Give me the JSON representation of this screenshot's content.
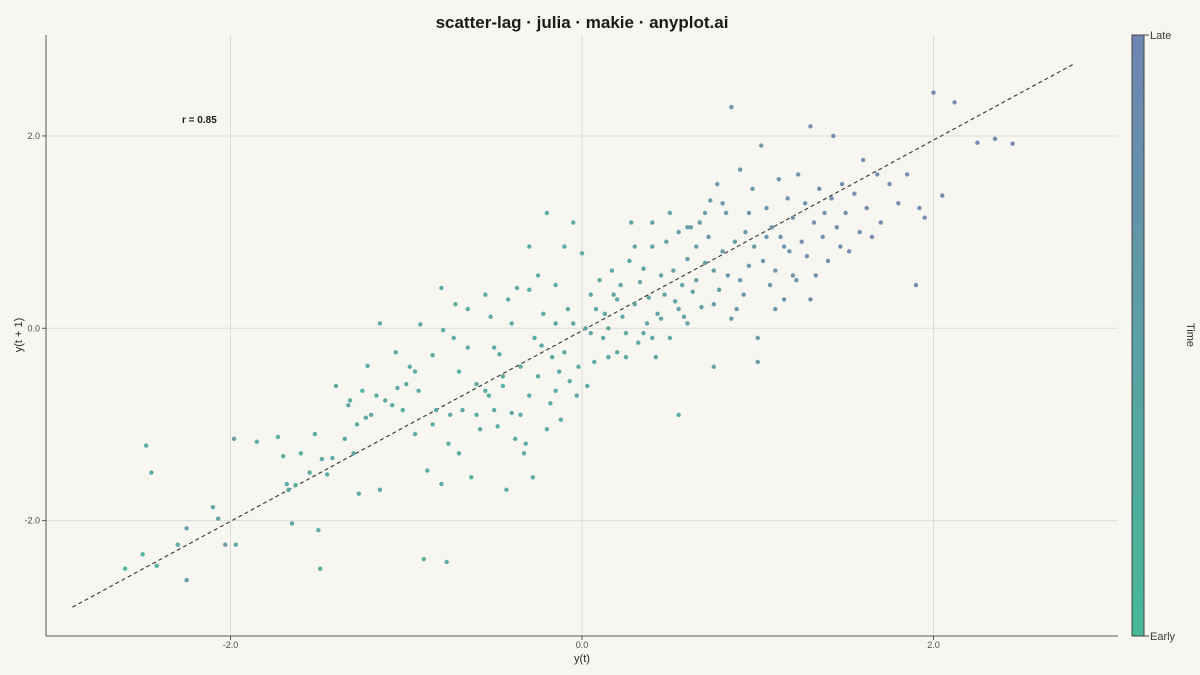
{
  "chart_data": {
    "type": "scatter",
    "title": "scatter-lag · julia · makie · anyplot.ai",
    "xlabel": "y(t)",
    "ylabel": "y(t + 1)",
    "xlim": [
      -3.05,
      3.05
    ],
    "ylim": [
      -3.2,
      3.05
    ],
    "xticks": [
      -2.0,
      0.0,
      2.0
    ],
    "yticks": [
      -2.0,
      0.0,
      2.0
    ],
    "xtick_labels": [
      "-2.0",
      "0.0",
      "2.0"
    ],
    "ytick_labels": [
      "-2.0",
      "0.0",
      "2.0"
    ],
    "grid": true,
    "annotation": "r = 0.85",
    "reference_line": {
      "style": "dashed",
      "from": [
        -2.9,
        -2.9
      ],
      "to": [
        2.8,
        2.75
      ]
    },
    "colorbar": {
      "label": "Time",
      "low_label": "Early",
      "high_label": "Late"
    },
    "colors": {
      "early": "#45b997",
      "late": "#6f85b2",
      "reference_line": "#333333",
      "grid": "#dcdcdc"
    },
    "points": [
      [
        -2.6,
        -2.5,
        0.1
      ],
      [
        -2.5,
        -2.35,
        0.15
      ],
      [
        -2.48,
        -1.22,
        0.4
      ],
      [
        -2.45,
        -1.5,
        0.35
      ],
      [
        -2.42,
        -2.47,
        0.2
      ],
      [
        -2.3,
        -2.25,
        0.3
      ],
      [
        -2.25,
        -2.08,
        0.5
      ],
      [
        -2.25,
        -2.62,
        0.6
      ],
      [
        -2.1,
        -1.86,
        0.45
      ],
      [
        -2.07,
        -1.98,
        0.55
      ],
      [
        -2.03,
        -2.25,
        0.65
      ],
      [
        -1.98,
        -1.15,
        0.7
      ],
      [
        -1.85,
        -1.18,
        0.35
      ],
      [
        -1.73,
        -1.13,
        0.25
      ],
      [
        -1.7,
        -1.33,
        0.2
      ],
      [
        -1.68,
        -1.62,
        0.3
      ],
      [
        -1.67,
        -1.68,
        0.35
      ],
      [
        -1.65,
        -2.03,
        0.5
      ],
      [
        -1.63,
        -1.63,
        0.15
      ],
      [
        -1.6,
        -1.3,
        0.2
      ],
      [
        -1.52,
        -1.1,
        0.3
      ],
      [
        -1.5,
        -2.1,
        0.25
      ],
      [
        -1.49,
        -2.5,
        0.3
      ],
      [
        -1.48,
        -1.36,
        0.35
      ],
      [
        -1.45,
        -1.52,
        0.4
      ],
      [
        -1.42,
        -1.35,
        0.4
      ],
      [
        -1.35,
        -1.15,
        0.35
      ],
      [
        -1.33,
        -0.8,
        0.45
      ],
      [
        -1.32,
        -0.75,
        0.3
      ],
      [
        -1.3,
        -1.3,
        0.4
      ],
      [
        -1.28,
        -1.0,
        0.3
      ],
      [
        -1.27,
        -1.72,
        0.3
      ],
      [
        -1.25,
        -0.65,
        0.2
      ],
      [
        -1.23,
        -0.93,
        0.4
      ],
      [
        -1.22,
        -0.39,
        0.35
      ],
      [
        -1.2,
        -0.9,
        0.4
      ],
      [
        -1.17,
        -0.7,
        0.25
      ],
      [
        -1.15,
        -1.68,
        0.3
      ],
      [
        -1.12,
        -0.75,
        0.45
      ],
      [
        -1.08,
        -0.8,
        0.35
      ],
      [
        -1.06,
        -0.25,
        0.3
      ],
      [
        -1.05,
        -0.62,
        0.4
      ],
      [
        -1.02,
        -0.85,
        0.2
      ],
      [
        -1.0,
        -0.58,
        0.3
      ],
      [
        -0.98,
        -0.4,
        0.3
      ],
      [
        -0.95,
        -0.45,
        0.25
      ],
      [
        -0.93,
        -0.65,
        0.35
      ],
      [
        -0.92,
        0.04,
        0.4
      ],
      [
        -0.88,
        -1.48,
        0.3
      ],
      [
        -0.85,
        -0.28,
        0.2
      ],
      [
        -0.83,
        -0.85,
        0.3
      ],
      [
        -0.8,
        -1.62,
        0.3
      ],
      [
        -0.79,
        -0.02,
        0.35
      ],
      [
        -0.77,
        -2.43,
        0.4
      ],
      [
        -0.76,
        -1.2,
        0.3
      ],
      [
        -0.75,
        -0.9,
        0.4
      ],
      [
        -0.73,
        -0.1,
        0.3
      ],
      [
        -0.7,
        -0.45,
        0.2
      ],
      [
        -0.68,
        -0.85,
        0.3
      ],
      [
        -0.65,
        -0.2,
        0.3
      ],
      [
        -0.63,
        -1.55,
        0.2
      ],
      [
        -0.6,
        -0.58,
        0.3
      ],
      [
        -0.58,
        -1.05,
        0.4
      ],
      [
        -0.55,
        -0.65,
        0.3
      ],
      [
        -0.53,
        -0.7,
        0.2
      ],
      [
        -0.52,
        0.12,
        0.3
      ],
      [
        -0.5,
        -0.85,
        0.35
      ],
      [
        -0.48,
        -1.02,
        0.25
      ],
      [
        -0.47,
        -0.27,
        0.3
      ],
      [
        -0.45,
        -0.6,
        0.2
      ],
      [
        -0.43,
        -1.68,
        0.3
      ],
      [
        -0.42,
        0.3,
        0.35
      ],
      [
        -0.4,
        -0.88,
        0.4
      ],
      [
        -0.38,
        -1.15,
        0.3
      ],
      [
        -0.37,
        0.42,
        0.3
      ],
      [
        -0.35,
        -0.9,
        0.35
      ],
      [
        -0.33,
        -1.3,
        0.3
      ],
      [
        -0.32,
        -1.2,
        0.3
      ],
      [
        -0.3,
        -0.7,
        0.4
      ],
      [
        -0.28,
        -1.55,
        0.3
      ],
      [
        -0.27,
        -0.1,
        0.2
      ],
      [
        -0.25,
        -0.5,
        0.3
      ],
      [
        -0.23,
        -0.18,
        0.3
      ],
      [
        -0.22,
        0.15,
        0.35
      ],
      [
        -0.2,
        -1.05,
        0.4
      ],
      [
        -0.18,
        -0.78,
        0.3
      ],
      [
        -0.17,
        -0.3,
        0.3
      ],
      [
        -0.15,
        0.05,
        0.35
      ],
      [
        -0.13,
        -0.45,
        0.35
      ],
      [
        -0.12,
        -0.95,
        0.3
      ],
      [
        -0.1,
        -0.25,
        0.3
      ],
      [
        -0.08,
        0.2,
        0.3
      ],
      [
        -0.07,
        -0.55,
        0.35
      ],
      [
        -0.05,
        0.05,
        0.35
      ],
      [
        -0.03,
        -0.7,
        0.4
      ],
      [
        -0.02,
        -0.4,
        0.3
      ],
      [
        0.0,
        0.78,
        0.3
      ],
      [
        0.02,
        0.0,
        0.4
      ],
      [
        0.03,
        -0.6,
        0.3
      ],
      [
        0.05,
        0.35,
        0.45
      ],
      [
        0.07,
        -0.35,
        0.35
      ],
      [
        0.08,
        0.2,
        0.4
      ],
      [
        0.1,
        0.5,
        0.4
      ],
      [
        0.12,
        -0.1,
        0.4
      ],
      [
        0.13,
        0.15,
        0.35
      ],
      [
        0.15,
        -0.3,
        0.4
      ],
      [
        0.17,
        0.6,
        0.4
      ],
      [
        0.18,
        0.35,
        0.45
      ],
      [
        0.2,
        -0.25,
        0.35
      ],
      [
        0.22,
        0.45,
        0.45
      ],
      [
        0.23,
        0.12,
        0.45
      ],
      [
        0.25,
        -0.05,
        0.4
      ],
      [
        0.27,
        0.7,
        0.45
      ],
      [
        0.28,
        1.1,
        0.5
      ],
      [
        0.3,
        0.25,
        0.45
      ],
      [
        0.32,
        -0.15,
        0.4
      ],
      [
        0.33,
        0.48,
        0.4
      ],
      [
        0.35,
        0.62,
        0.5
      ],
      [
        0.37,
        0.05,
        0.5
      ],
      [
        0.38,
        0.32,
        0.45
      ],
      [
        0.4,
        0.85,
        0.5
      ],
      [
        0.42,
        -0.3,
        0.45
      ],
      [
        0.43,
        0.15,
        0.5
      ],
      [
        0.45,
        0.55,
        0.5
      ],
      [
        0.47,
        0.35,
        0.45
      ],
      [
        0.48,
        0.9,
        0.5
      ],
      [
        0.5,
        -0.1,
        0.45
      ],
      [
        0.52,
        0.6,
        0.5
      ],
      [
        0.53,
        0.28,
        0.5
      ],
      [
        0.55,
        1.0,
        0.5
      ],
      [
        0.57,
        0.45,
        0.5
      ],
      [
        0.58,
        0.12,
        0.55
      ],
      [
        0.6,
        0.72,
        0.6
      ],
      [
        0.62,
        1.05,
        0.55
      ],
      [
        0.63,
        0.38,
        0.55
      ],
      [
        0.65,
        0.5,
        0.6
      ],
      [
        0.67,
        1.1,
        0.6
      ],
      [
        0.68,
        0.22,
        0.55
      ],
      [
        0.7,
        0.68,
        0.6
      ],
      [
        0.72,
        0.95,
        0.65
      ],
      [
        0.73,
        1.33,
        0.6
      ],
      [
        0.75,
        0.6,
        0.65
      ],
      [
        0.77,
        1.5,
        0.65
      ],
      [
        0.78,
        0.4,
        0.6
      ],
      [
        0.8,
        0.8,
        0.6
      ],
      [
        0.82,
        1.2,
        0.7
      ],
      [
        0.83,
        0.55,
        0.6
      ],
      [
        0.85,
        2.3,
        0.75
      ],
      [
        0.87,
        0.9,
        0.65
      ],
      [
        0.88,
        0.2,
        0.65
      ],
      [
        0.9,
        1.65,
        0.7
      ],
      [
        0.92,
        0.35,
        0.7
      ],
      [
        0.93,
        1.0,
        0.65
      ],
      [
        0.95,
        0.65,
        0.7
      ],
      [
        0.97,
        1.45,
        0.7
      ],
      [
        0.98,
        0.85,
        0.7
      ],
      [
        1.0,
        -0.1,
        0.7
      ],
      [
        1.02,
        1.9,
        0.75
      ],
      [
        1.03,
        0.7,
        0.7
      ],
      [
        1.05,
        1.25,
        0.75
      ],
      [
        1.07,
        0.45,
        0.7
      ],
      [
        1.08,
        1.05,
        0.75
      ],
      [
        1.1,
        0.6,
        0.75
      ],
      [
        1.12,
        1.55,
        0.75
      ],
      [
        1.13,
        0.95,
        0.8
      ],
      [
        1.15,
        0.3,
        0.75
      ],
      [
        1.17,
        1.35,
        0.8
      ],
      [
        1.18,
        0.8,
        0.8
      ],
      [
        1.2,
        1.15,
        0.8
      ],
      [
        1.22,
        0.5,
        0.8
      ],
      [
        1.23,
        1.6,
        0.8
      ],
      [
        1.25,
        0.9,
        0.85
      ],
      [
        1.27,
        1.3,
        0.8
      ],
      [
        1.28,
        0.75,
        0.85
      ],
      [
        1.3,
        2.1,
        0.85
      ],
      [
        1.32,
        1.1,
        0.85
      ],
      [
        1.33,
        0.55,
        0.8
      ],
      [
        1.35,
        1.45,
        0.85
      ],
      [
        1.37,
        0.95,
        0.85
      ],
      [
        1.38,
        1.2,
        0.85
      ],
      [
        1.4,
        0.7,
        0.85
      ],
      [
        1.42,
        1.35,
        0.9
      ],
      [
        1.43,
        2.0,
        0.9
      ],
      [
        1.45,
        1.05,
        0.9
      ],
      [
        1.47,
        0.85,
        0.85
      ],
      [
        1.48,
        1.5,
        0.9
      ],
      [
        1.5,
        1.2,
        0.9
      ],
      [
        1.52,
        0.8,
        0.9
      ],
      [
        1.55,
        1.4,
        0.9
      ],
      [
        1.58,
        1.0,
        0.9
      ],
      [
        1.6,
        1.75,
        0.9
      ],
      [
        1.62,
        1.25,
        0.9
      ],
      [
        1.65,
        0.95,
        0.9
      ],
      [
        1.68,
        1.6,
        0.95
      ],
      [
        1.7,
        1.1,
        0.95
      ],
      [
        1.75,
        1.5,
        0.95
      ],
      [
        1.8,
        1.3,
        0.95
      ],
      [
        1.85,
        1.6,
        0.95
      ],
      [
        1.9,
        0.45,
        0.95
      ],
      [
        1.92,
        1.25,
        0.95
      ],
      [
        1.95,
        1.15,
        0.95
      ],
      [
        2.0,
        2.45,
        1.0
      ],
      [
        2.05,
        1.38,
        1.0
      ],
      [
        2.12,
        2.35,
        1.0
      ],
      [
        2.25,
        1.93,
        1.0
      ],
      [
        2.35,
        1.97,
        1.0
      ],
      [
        2.45,
        1.92,
        1.0
      ],
      [
        -0.9,
        -2.4,
        0.3
      ],
      [
        -1.97,
        -2.25,
        0.4
      ],
      [
        -0.6,
        -0.9,
        0.3
      ],
      [
        -0.35,
        -0.4,
        0.3
      ],
      [
        0.05,
        -0.05,
        0.4
      ],
      [
        0.15,
        0.0,
        0.4
      ],
      [
        0.2,
        0.3,
        0.4
      ],
      [
        0.35,
        -0.05,
        0.45
      ],
      [
        0.45,
        0.1,
        0.5
      ],
      [
        -0.15,
        0.45,
        0.35
      ],
      [
        -0.25,
        0.55,
        0.3
      ],
      [
        -0.55,
        0.35,
        0.3
      ],
      [
        -0.72,
        0.25,
        0.3
      ],
      [
        -0.4,
        0.05,
        0.3
      ],
      [
        0.55,
        0.2,
        0.5
      ],
      [
        0.65,
        0.85,
        0.55
      ],
      [
        0.75,
        0.25,
        0.6
      ],
      [
        0.9,
        0.5,
        0.65
      ],
      [
        1.1,
        0.2,
        0.75
      ],
      [
        1.2,
        0.55,
        0.8
      ],
      [
        0.3,
        0.85,
        0.45
      ],
      [
        0.4,
        1.1,
        0.5
      ],
      [
        0.5,
        1.2,
        0.5
      ],
      [
        0.6,
        1.05,
        0.55
      ],
      [
        0.7,
        1.2,
        0.6
      ],
      [
        0.8,
        1.3,
        0.65
      ],
      [
        0.95,
        1.2,
        0.7
      ],
      [
        1.05,
        0.95,
        0.75
      ],
      [
        -0.8,
        0.42,
        0.3
      ],
      [
        -0.65,
        0.2,
        0.3
      ],
      [
        -0.5,
        -0.2,
        0.3
      ],
      [
        -0.3,
        0.4,
        0.3
      ],
      [
        -0.1,
        0.85,
        0.3
      ],
      [
        -0.2,
        1.2,
        0.35
      ],
      [
        -0.05,
        1.1,
        0.35
      ],
      [
        -0.3,
        0.85,
        0.3
      ],
      [
        0.55,
        -0.9,
        0.4
      ],
      [
        0.75,
        -0.4,
        0.6
      ],
      [
        1.0,
        -0.35,
        0.7
      ],
      [
        -1.15,
        0.05,
        0.3
      ],
      [
        -1.4,
        -0.6,
        0.3
      ],
      [
        -1.55,
        -1.5,
        0.3
      ],
      [
        -0.85,
        -1.0,
        0.35
      ],
      [
        -0.95,
        -1.1,
        0.3
      ],
      [
        -0.7,
        -1.3,
        0.3
      ],
      [
        -0.45,
        -0.5,
        0.3
      ],
      [
        -0.15,
        -0.65,
        0.35
      ],
      [
        0.25,
        -0.3,
        0.4
      ],
      [
        0.4,
        -0.1,
        0.45
      ],
      [
        0.6,
        0.05,
        0.5
      ],
      [
        0.85,
        0.1,
        0.6
      ],
      [
        1.15,
        0.85,
        0.8
      ],
      [
        1.3,
        0.3,
        0.85
      ]
    ]
  }
}
